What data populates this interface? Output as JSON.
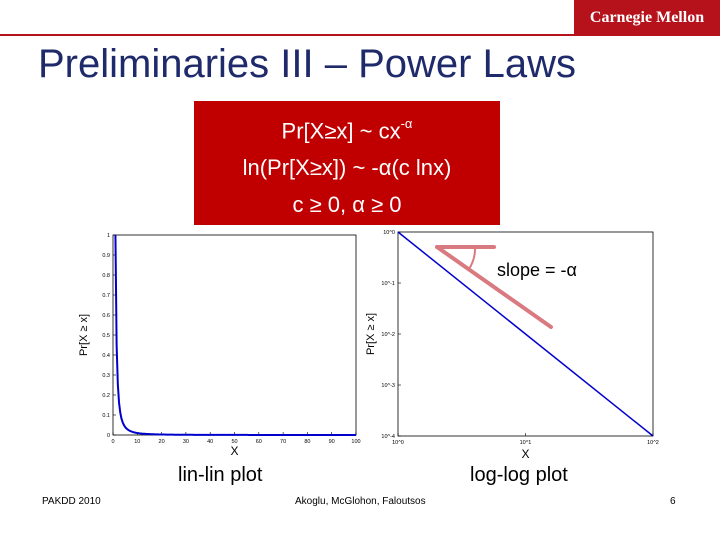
{
  "logo": "Carnegie Mellon",
  "title": "Preliminaries III – Power Laws",
  "formula_box": {
    "line1_main": "Pr[X≥x] ~ cx",
    "line1_sup": "-α",
    "line2": "ln(Pr[X≥x]) ~ -α(c lnx)",
    "line3": "c ≥ 0, α ≥ 0"
  },
  "annotation": "slope = -α",
  "captions": {
    "left": "lin-lin plot",
    "right": "log-log plot"
  },
  "footer": {
    "left": "PAKDD 2010",
    "center": "Akoglu, McGlohon, Faloutsos",
    "right": "6"
  },
  "colors": {
    "accent": "#b5121b",
    "title": "#1f2a6b",
    "box": "#c00000",
    "curve": "#0000cc",
    "slope_marker": "#d97a80"
  },
  "chart_data": [
    {
      "type": "line",
      "xlabel": "X",
      "ylabel": "Pr[X ≥ x]",
      "xlim": [
        0,
        100
      ],
      "ylim": [
        0,
        1
      ],
      "yticks": [
        "0",
        "0.1",
        "0.2",
        "0.3",
        "0.4",
        "0.5",
        "0.6",
        "0.7",
        "0.8",
        "0.9",
        "1"
      ],
      "xticks": [
        "0",
        "10",
        "20",
        "30",
        "40",
        "50",
        "60",
        "70",
        "80",
        "90",
        "100"
      ],
      "x": [
        1,
        2,
        3,
        4,
        5,
        6,
        8,
        10,
        15,
        20,
        30,
        40,
        60,
        80,
        100
      ],
      "y": [
        1.0,
        0.25,
        0.111,
        0.0625,
        0.04,
        0.0278,
        0.0156,
        0.01,
        0.0044,
        0.0025,
        0.0011,
        0.0006,
        0.0003,
        0.0002,
        0.0001
      ]
    },
    {
      "type": "line",
      "scale": "log-log",
      "xlabel": "X",
      "ylabel": "Pr[X ≥ x]",
      "xlim": [
        1,
        100
      ],
      "ylim": [
        0.0001,
        1
      ],
      "yticks": [
        "10^0",
        "10^-1",
        "10^-2",
        "10^-3",
        "10^-4"
      ],
      "xticks": [
        "10^0",
        "10^1",
        "10^2"
      ],
      "x": [
        1,
        100
      ],
      "y": [
        1,
        0.0001
      ]
    }
  ]
}
